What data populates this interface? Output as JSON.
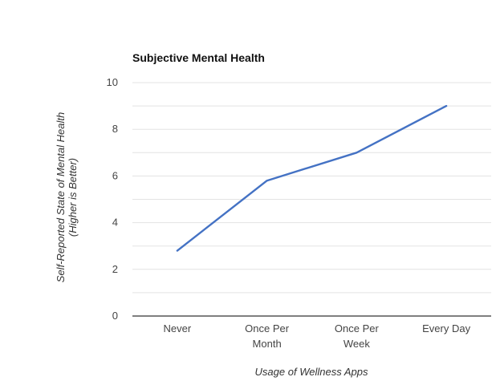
{
  "chart_data": {
    "type": "line",
    "title": "Subjective Mental Health",
    "xlabel": "Usage of Wellness Apps",
    "ylabel_lines": [
      "Self-Reported State of Mental Health",
      "(Higher is Better)"
    ],
    "categories": [
      [
        "Never"
      ],
      [
        "Once Per",
        "Month"
      ],
      [
        "Once Per",
        "Week"
      ],
      [
        "Every Day"
      ]
    ],
    "series": [
      {
        "values": [
          2.8,
          5.8,
          7.0,
          9.0
        ],
        "color": "#4472c4"
      }
    ],
    "ylim": [
      0,
      10
    ],
    "yticks": [
      0,
      2,
      4,
      6,
      8,
      10
    ],
    "grid": true,
    "legend": "none"
  }
}
